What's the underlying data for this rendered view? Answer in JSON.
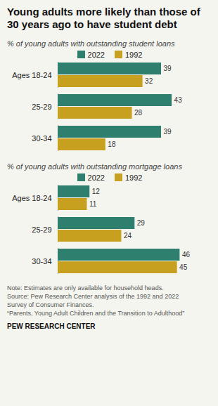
{
  "chart_data": [
    {
      "type": "bar",
      "title": "Young adults more likely than those of\n30 years ago to have student debt",
      "subtitle": "% of young adults with outstanding student loans",
      "orientation": "horizontal",
      "categories": [
        "Ages 18-24",
        "25-29",
        "30-34"
      ],
      "series": [
        {
          "name": "2022",
          "color": "#2e7f6e",
          "values": [
            39,
            43,
            39
          ]
        },
        {
          "name": "1992",
          "color": "#c8a020",
          "values": [
            32,
            28,
            18
          ]
        }
      ],
      "xlim": [
        0,
        52
      ],
      "tick_labels": "y",
      "data_labels": true,
      "legend": "top",
      "grid": false
    },
    {
      "type": "bar",
      "subtitle": "% of young adults with outstanding mortgage loans",
      "orientation": "horizontal",
      "categories": [
        "Ages 18-24",
        "25-29",
        "30-34"
      ],
      "series": [
        {
          "name": "2022",
          "color": "#2e7f6e",
          "values": [
            12,
            29,
            46
          ]
        },
        {
          "name": "1992",
          "color": "#c8a020",
          "values": [
            11,
            24,
            45
          ]
        }
      ],
      "xlim": [
        0,
        52
      ],
      "tick_labels": "y",
      "data_labels": true,
      "legend": "top",
      "grid": false,
      "annotations": [
        "Note: Estimates are only available for household heads.",
        "Source: Pew Research Center analysis of the 1992 and 2022",
        "Survey of Consumer Finances.",
        "“Parents, Young Adult Children and the Transition to Adulthood”"
      ],
      "source": "PEW RESEARCH CENTER"
    }
  ]
}
